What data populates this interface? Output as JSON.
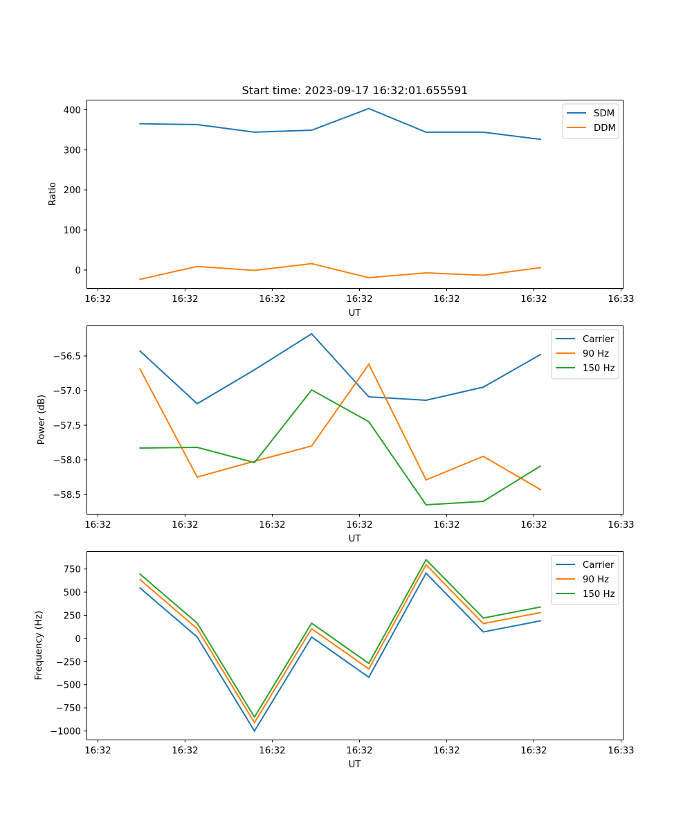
{
  "figure_title": "Start time: 2023-09-17 16:32:01.655591",
  "chart_data": [
    {
      "type": "line",
      "title": "Start time: 2023-09-17 16:32:01.655591",
      "xlabel": "UT",
      "ylabel": "Ratio",
      "x_tick_labels": [
        "16:32",
        "16:32",
        "16:32",
        "16:32",
        "16:32",
        "16:32",
        "16:33"
      ],
      "x_tick_positions": [
        0,
        1,
        2,
        3,
        4,
        5,
        6
      ],
      "x": [
        0.484,
        1.14,
        1.796,
        2.452,
        3.108,
        3.764,
        4.42,
        5.076
      ],
      "xlim": [
        -0.13,
        6.02
      ],
      "ylim": [
        -45,
        425
      ],
      "y_ticks": [
        0,
        100,
        200,
        300,
        400
      ],
      "y_tick_labels": [
        "0",
        "100",
        "200",
        "300",
        "400"
      ],
      "grid": false,
      "legend_position": "top-right",
      "series": [
        {
          "name": "SDM",
          "color": "#1f77b4",
          "values": [
            365,
            363,
            344,
            349,
            403,
            344,
            344,
            326
          ]
        },
        {
          "name": "DDM",
          "color": "#ff7f0e",
          "values": [
            -23,
            9,
            -1,
            16,
            -19,
            -7,
            -13,
            6
          ]
        }
      ]
    },
    {
      "type": "line",
      "title": "",
      "xlabel": "UT",
      "ylabel": "Power (dB)",
      "x_tick_labels": [
        "16:32",
        "16:32",
        "16:32",
        "16:32",
        "16:32",
        "16:32",
        "16:33"
      ],
      "x_tick_positions": [
        0,
        1,
        2,
        3,
        4,
        5,
        6
      ],
      "x": [
        0.484,
        1.14,
        1.796,
        2.452,
        3.108,
        3.764,
        4.42,
        5.076
      ],
      "xlim": [
        -0.13,
        6.02
      ],
      "ylim": [
        -58.78,
        -56.06
      ],
      "y_ticks": [
        -58.5,
        -58.0,
        -57.5,
        -57.0,
        -56.5
      ],
      "y_tick_labels": [
        "−58.5",
        "−58.0",
        "−57.5",
        "−57.0",
        "−56.5"
      ],
      "grid": false,
      "legend_position": "top-right",
      "series": [
        {
          "name": "Carrier",
          "color": "#1f77b4",
          "values": [
            -56.43,
            -57.19,
            -56.7,
            -56.18,
            -57.09,
            -57.14,
            -56.95,
            -56.48
          ]
        },
        {
          "name": "90 Hz",
          "color": "#ff7f0e",
          "values": [
            -56.69,
            -58.25,
            -58.02,
            -57.8,
            -56.62,
            -58.29,
            -57.95,
            -58.43
          ]
        },
        {
          "name": "150 Hz",
          "color": "#2ca02c",
          "values": [
            -57.83,
            -57.82,
            -58.04,
            -56.99,
            -57.45,
            -58.65,
            -58.6,
            -58.09
          ]
        }
      ]
    },
    {
      "type": "line",
      "title": "",
      "xlabel": "UT",
      "ylabel": "Frequency (Hz)",
      "x_tick_labels": [
        "16:32",
        "16:32",
        "16:32",
        "16:32",
        "16:32",
        "16:32",
        "16:33"
      ],
      "x_tick_positions": [
        0,
        1,
        2,
        3,
        4,
        5,
        6
      ],
      "x": [
        0.484,
        1.14,
        1.796,
        2.452,
        3.108,
        3.764,
        4.42,
        5.076
      ],
      "xlim": [
        -0.13,
        6.02
      ],
      "ylim": [
        -1093,
        942
      ],
      "y_ticks": [
        -1000,
        -750,
        -500,
        -250,
        0,
        250,
        500,
        750
      ],
      "y_tick_labels": [
        "−1000",
        "−750",
        "−500",
        "−250",
        "0",
        "250",
        "500",
        "750"
      ],
      "grid": false,
      "legend_position": "top-right",
      "series": [
        {
          "name": "Carrier",
          "color": "#1f77b4",
          "values": [
            545,
            15,
            -1000,
            15,
            -420,
            705,
            70,
            190
          ]
        },
        {
          "name": "90 Hz",
          "color": "#ff7f0e",
          "values": [
            635,
            105,
            -910,
            105,
            -330,
            795,
            160,
            280
          ]
        },
        {
          "name": "150 Hz",
          "color": "#2ca02c",
          "values": [
            695,
            165,
            -850,
            165,
            -270,
            850,
            220,
            340
          ]
        }
      ]
    }
  ]
}
